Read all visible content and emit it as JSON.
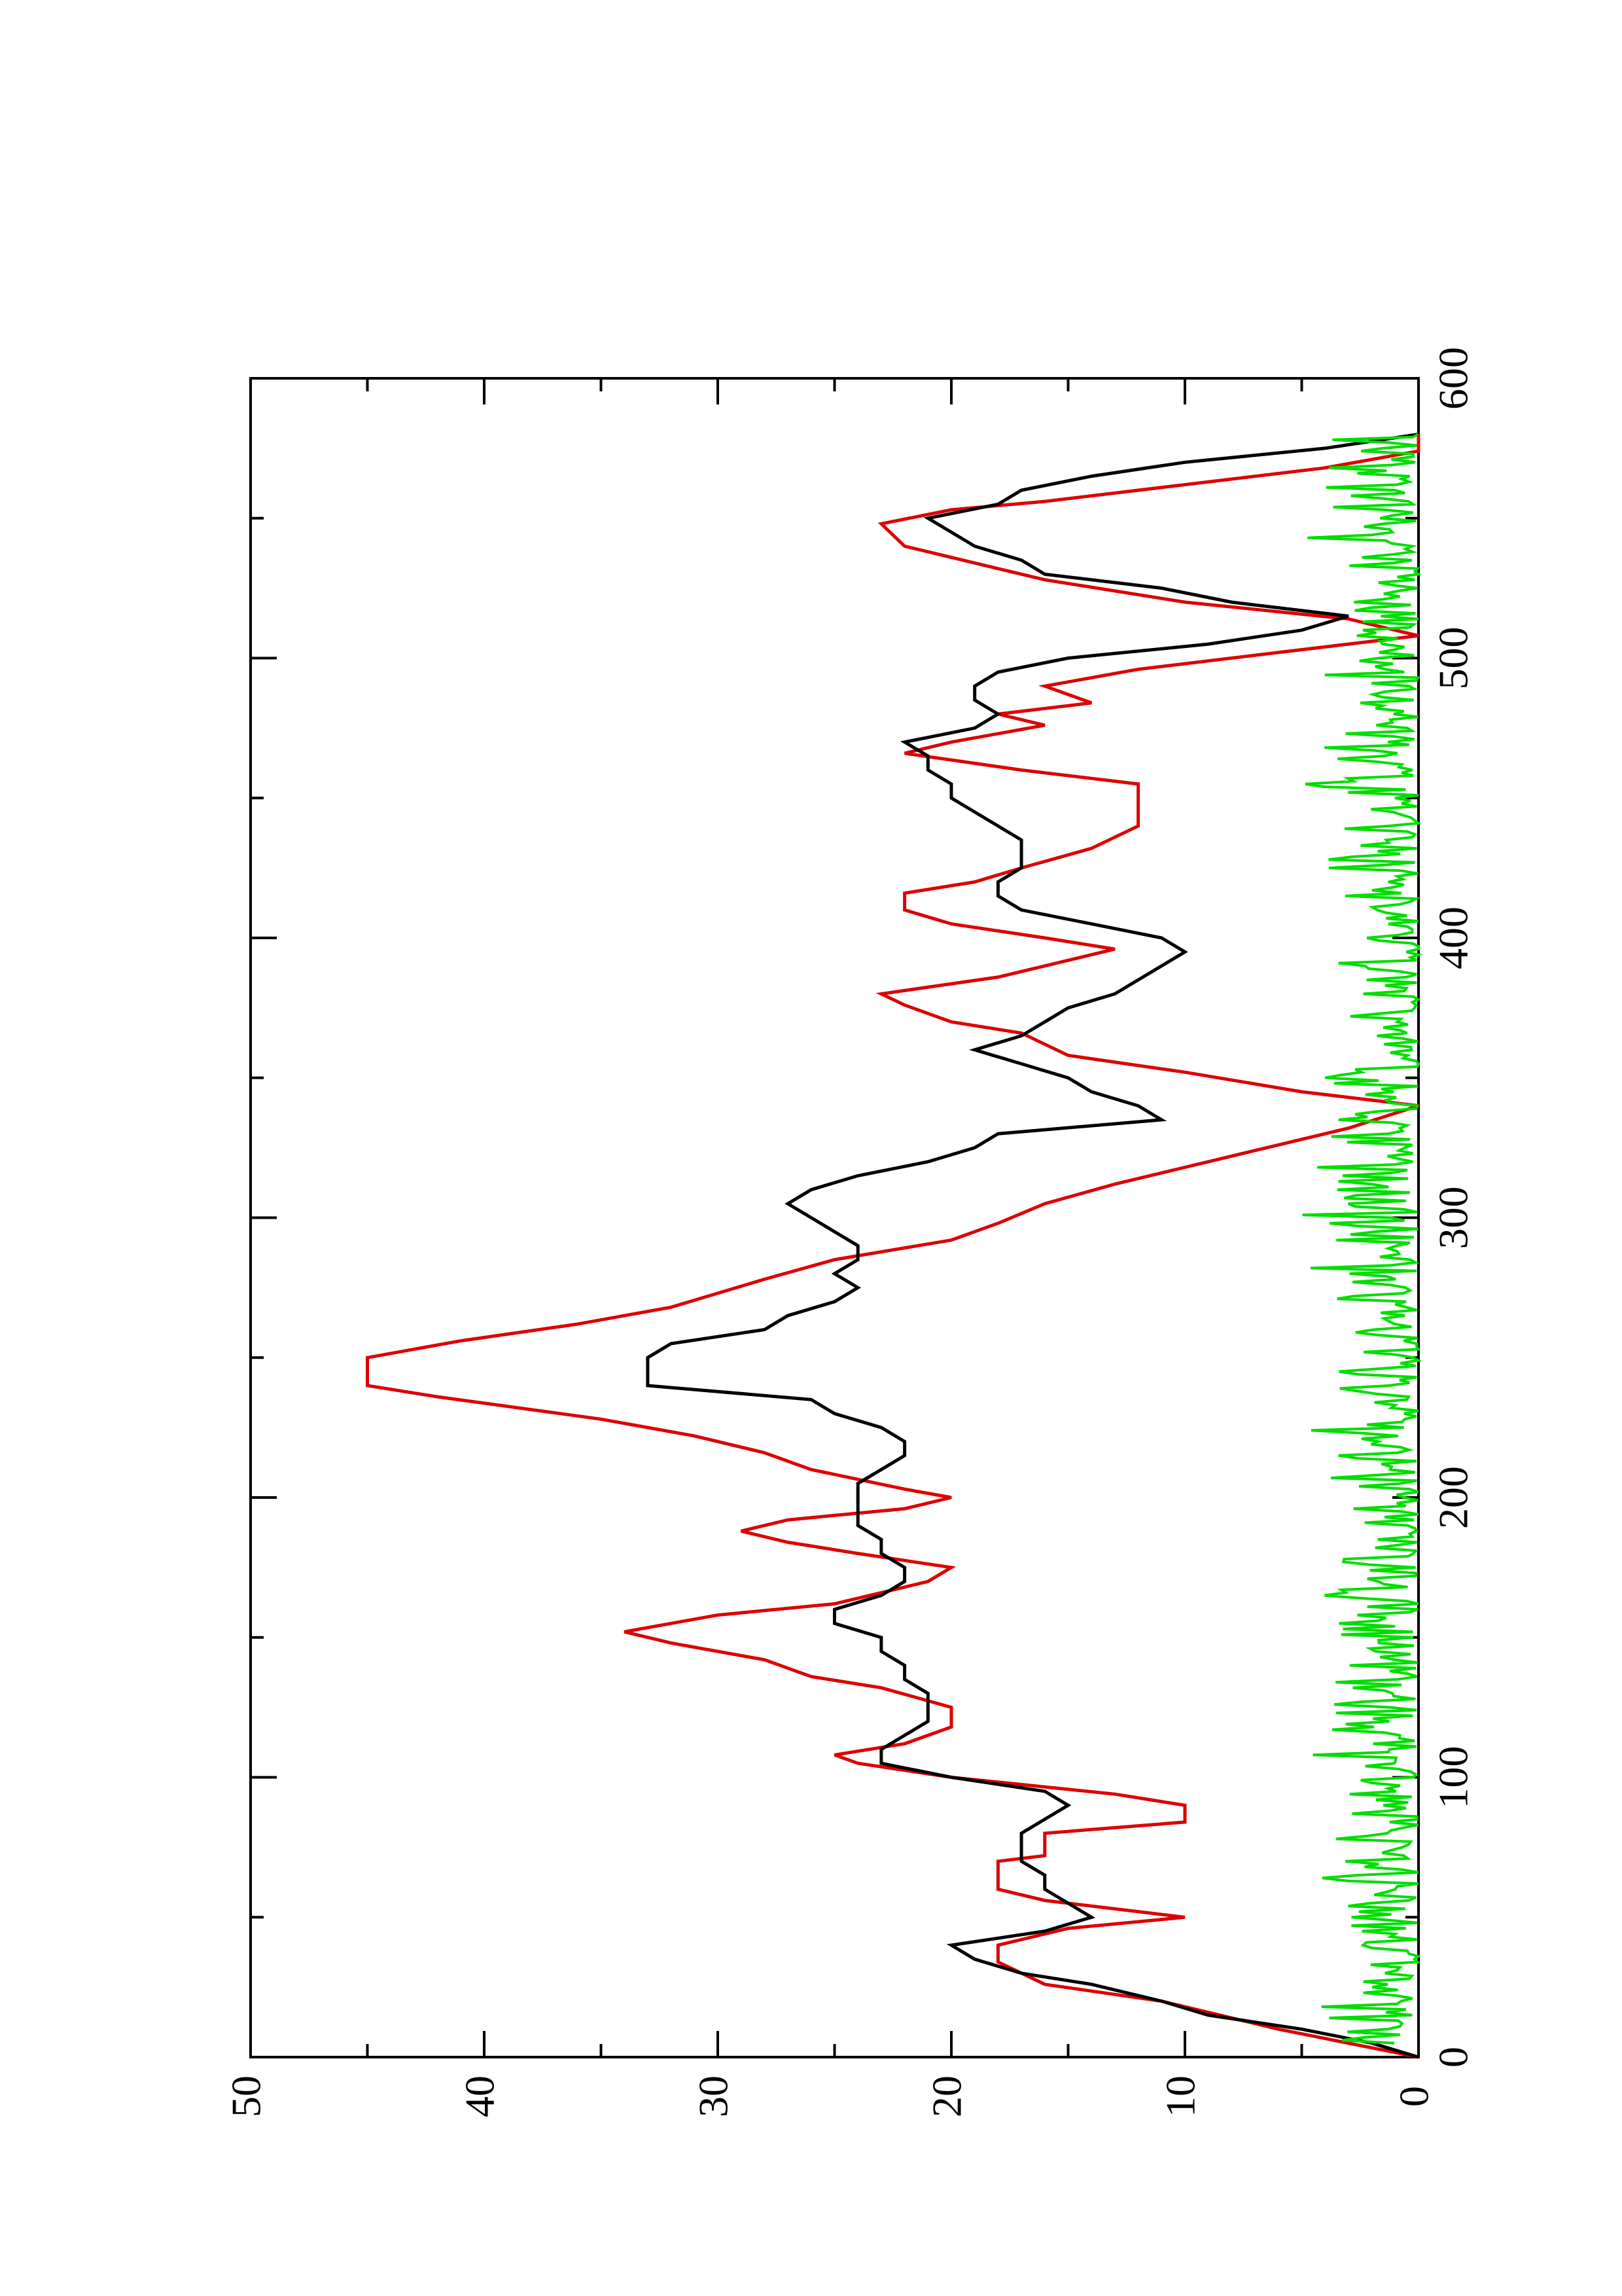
{
  "chart_data": {
    "type": "line",
    "orientation": "rotated-90-clockwise",
    "title": "",
    "xlabel": "",
    "ylabel": "",
    "xlim": [
      0,
      600
    ],
    "ylim": [
      0,
      50
    ],
    "x_ticks": [
      0,
      100,
      200,
      300,
      400,
      500,
      600
    ],
    "y_ticks": [
      0,
      10,
      20,
      30,
      40,
      50
    ],
    "x_tick_labels": [
      "0",
      "100",
      "200",
      "300",
      "400",
      "500",
      "600"
    ],
    "y_tick_labels": [
      "0",
      "10",
      "20",
      "30",
      "40",
      "50"
    ],
    "grid": false,
    "legend": "none",
    "series": [
      {
        "color": "#dd0000",
        "style": "step",
        "points": [
          [
            0,
            0
          ],
          [
            10,
            6
          ],
          [
            20,
            11
          ],
          [
            26,
            16
          ],
          [
            34,
            18
          ],
          [
            40,
            18
          ],
          [
            46,
            15
          ],
          [
            50,
            10
          ],
          [
            56,
            16
          ],
          [
            60,
            18
          ],
          [
            70,
            18
          ],
          [
            72,
            16
          ],
          [
            80,
            16
          ],
          [
            84,
            10
          ],
          [
            90,
            10
          ],
          [
            94,
            13
          ],
          [
            100,
            20
          ],
          [
            105,
            24
          ],
          [
            108,
            25
          ],
          [
            112,
            22
          ],
          [
            118,
            20
          ],
          [
            125,
            20
          ],
          [
            132,
            23
          ],
          [
            136,
            26
          ],
          [
            142,
            28
          ],
          [
            148,
            32
          ],
          [
            152,
            34
          ],
          [
            158,
            30
          ],
          [
            162,
            25
          ],
          [
            170,
            21
          ],
          [
            175,
            20
          ],
          [
            180,
            24
          ],
          [
            184,
            27
          ],
          [
            188,
            29
          ],
          [
            192,
            27
          ],
          [
            196,
            22
          ],
          [
            200,
            20
          ],
          [
            203,
            22
          ],
          [
            210,
            26
          ],
          [
            216,
            28
          ],
          [
            222,
            31
          ],
          [
            228,
            35
          ],
          [
            236,
            42
          ],
          [
            240,
            45
          ],
          [
            250,
            45
          ],
          [
            256,
            41
          ],
          [
            262,
            36
          ],
          [
            268,
            32
          ],
          [
            278,
            28
          ],
          [
            285,
            25
          ],
          [
            292,
            20
          ],
          [
            298,
            18
          ],
          [
            305,
            16
          ],
          [
            312,
            13
          ],
          [
            318,
            10
          ],
          [
            326,
            6
          ],
          [
            332,
            3
          ],
          [
            340,
            0
          ],
          [
            345,
            5
          ],
          [
            352,
            10
          ],
          [
            358,
            15
          ],
          [
            366,
            17
          ],
          [
            370,
            20
          ],
          [
            376,
            22
          ],
          [
            380,
            23
          ],
          [
            386,
            18
          ],
          [
            390,
            16
          ],
          [
            396,
            13
          ],
          [
            400,
            16
          ],
          [
            405,
            20
          ],
          [
            410,
            22
          ],
          [
            416,
            22
          ],
          [
            420,
            19
          ],
          [
            425,
            17
          ],
          [
            432,
            14
          ],
          [
            440,
            12
          ],
          [
            455,
            12
          ],
          [
            460,
            17
          ],
          [
            466,
            22
          ],
          [
            470,
            20
          ],
          [
            476,
            16
          ],
          [
            480,
            18
          ],
          [
            484,
            14
          ],
          [
            490,
            16
          ],
          [
            496,
            12
          ],
          [
            502,
            6
          ],
          [
            508,
            0
          ],
          [
            514,
            3
          ],
          [
            520,
            10
          ],
          [
            528,
            16
          ],
          [
            534,
            19
          ],
          [
            540,
            22
          ],
          [
            548,
            23
          ],
          [
            553,
            20
          ],
          [
            556,
            16
          ],
          [
            562,
            10
          ],
          [
            568,
            4
          ],
          [
            574,
            0
          ],
          [
            580,
            0
          ]
        ]
      },
      {
        "color": "#000000",
        "style": "line",
        "points": [
          [
            0,
            0
          ],
          [
            5,
            2
          ],
          [
            10,
            5
          ],
          [
            15,
            9
          ],
          [
            20,
            11
          ],
          [
            26,
            14
          ],
          [
            30,
            17
          ],
          [
            35,
            19
          ],
          [
            40,
            20
          ],
          [
            45,
            16
          ],
          [
            50,
            14
          ],
          [
            55,
            15
          ],
          [
            60,
            16
          ],
          [
            65,
            16
          ],
          [
            70,
            17
          ],
          [
            75,
            17
          ],
          [
            80,
            17
          ],
          [
            85,
            16
          ],
          [
            90,
            15
          ],
          [
            95,
            16
          ],
          [
            100,
            20
          ],
          [
            105,
            23
          ],
          [
            110,
            23
          ],
          [
            115,
            22
          ],
          [
            120,
            21
          ],
          [
            125,
            21
          ],
          [
            130,
            21
          ],
          [
            135,
            22
          ],
          [
            140,
            22
          ],
          [
            145,
            23
          ],
          [
            150,
            23
          ],
          [
            155,
            25
          ],
          [
            160,
            25
          ],
          [
            165,
            23
          ],
          [
            170,
            22
          ],
          [
            175,
            22
          ],
          [
            180,
            23
          ],
          [
            185,
            23
          ],
          [
            190,
            24
          ],
          [
            195,
            24
          ],
          [
            200,
            24
          ],
          [
            205,
            24
          ],
          [
            210,
            23
          ],
          [
            215,
            22
          ],
          [
            220,
            22
          ],
          [
            225,
            23
          ],
          [
            230,
            25
          ],
          [
            235,
            26
          ],
          [
            240,
            33
          ],
          [
            245,
            33
          ],
          [
            250,
            33
          ],
          [
            255,
            32
          ],
          [
            260,
            28
          ],
          [
            265,
            27
          ],
          [
            270,
            25
          ],
          [
            275,
            24
          ],
          [
            280,
            25
          ],
          [
            285,
            24
          ],
          [
            290,
            24
          ],
          [
            295,
            25
          ],
          [
            300,
            26
          ],
          [
            305,
            27
          ],
          [
            310,
            26
          ],
          [
            315,
            24
          ],
          [
            320,
            21
          ],
          [
            325,
            19
          ],
          [
            330,
            18
          ],
          [
            335,
            11
          ],
          [
            340,
            12
          ],
          [
            345,
            14
          ],
          [
            350,
            15
          ],
          [
            355,
            17
          ],
          [
            360,
            19
          ],
          [
            365,
            17
          ],
          [
            370,
            16
          ],
          [
            375,
            15
          ],
          [
            380,
            13
          ],
          [
            385,
            12
          ],
          [
            390,
            11
          ],
          [
            395,
            10
          ],
          [
            400,
            11
          ],
          [
            405,
            14
          ],
          [
            410,
            17
          ],
          [
            415,
            18
          ],
          [
            420,
            18
          ],
          [
            425,
            17
          ],
          [
            430,
            17
          ],
          [
            435,
            17
          ],
          [
            440,
            18
          ],
          [
            445,
            19
          ],
          [
            450,
            20
          ],
          [
            455,
            20
          ],
          [
            460,
            21
          ],
          [
            465,
            21
          ],
          [
            470,
            22
          ],
          [
            475,
            19
          ],
          [
            480,
            18
          ],
          [
            485,
            19
          ],
          [
            490,
            19
          ],
          [
            495,
            18
          ],
          [
            500,
            15
          ],
          [
            505,
            9
          ],
          [
            510,
            5
          ],
          [
            515,
            3
          ],
          [
            520,
            8
          ],
          [
            525,
            11
          ],
          [
            530,
            16
          ],
          [
            535,
            17
          ],
          [
            540,
            19
          ],
          [
            545,
            20
          ],
          [
            550,
            21
          ],
          [
            555,
            18
          ],
          [
            560,
            17
          ],
          [
            565,
            14
          ],
          [
            570,
            10
          ],
          [
            575,
            4
          ],
          [
            580,
            0
          ]
        ]
      },
      {
        "color": "#00dd00",
        "style": "line",
        "noisy_baseline": true,
        "approx_range": [
          0,
          5
        ],
        "x_start": 5,
        "x_end": 580
      }
    ]
  }
}
